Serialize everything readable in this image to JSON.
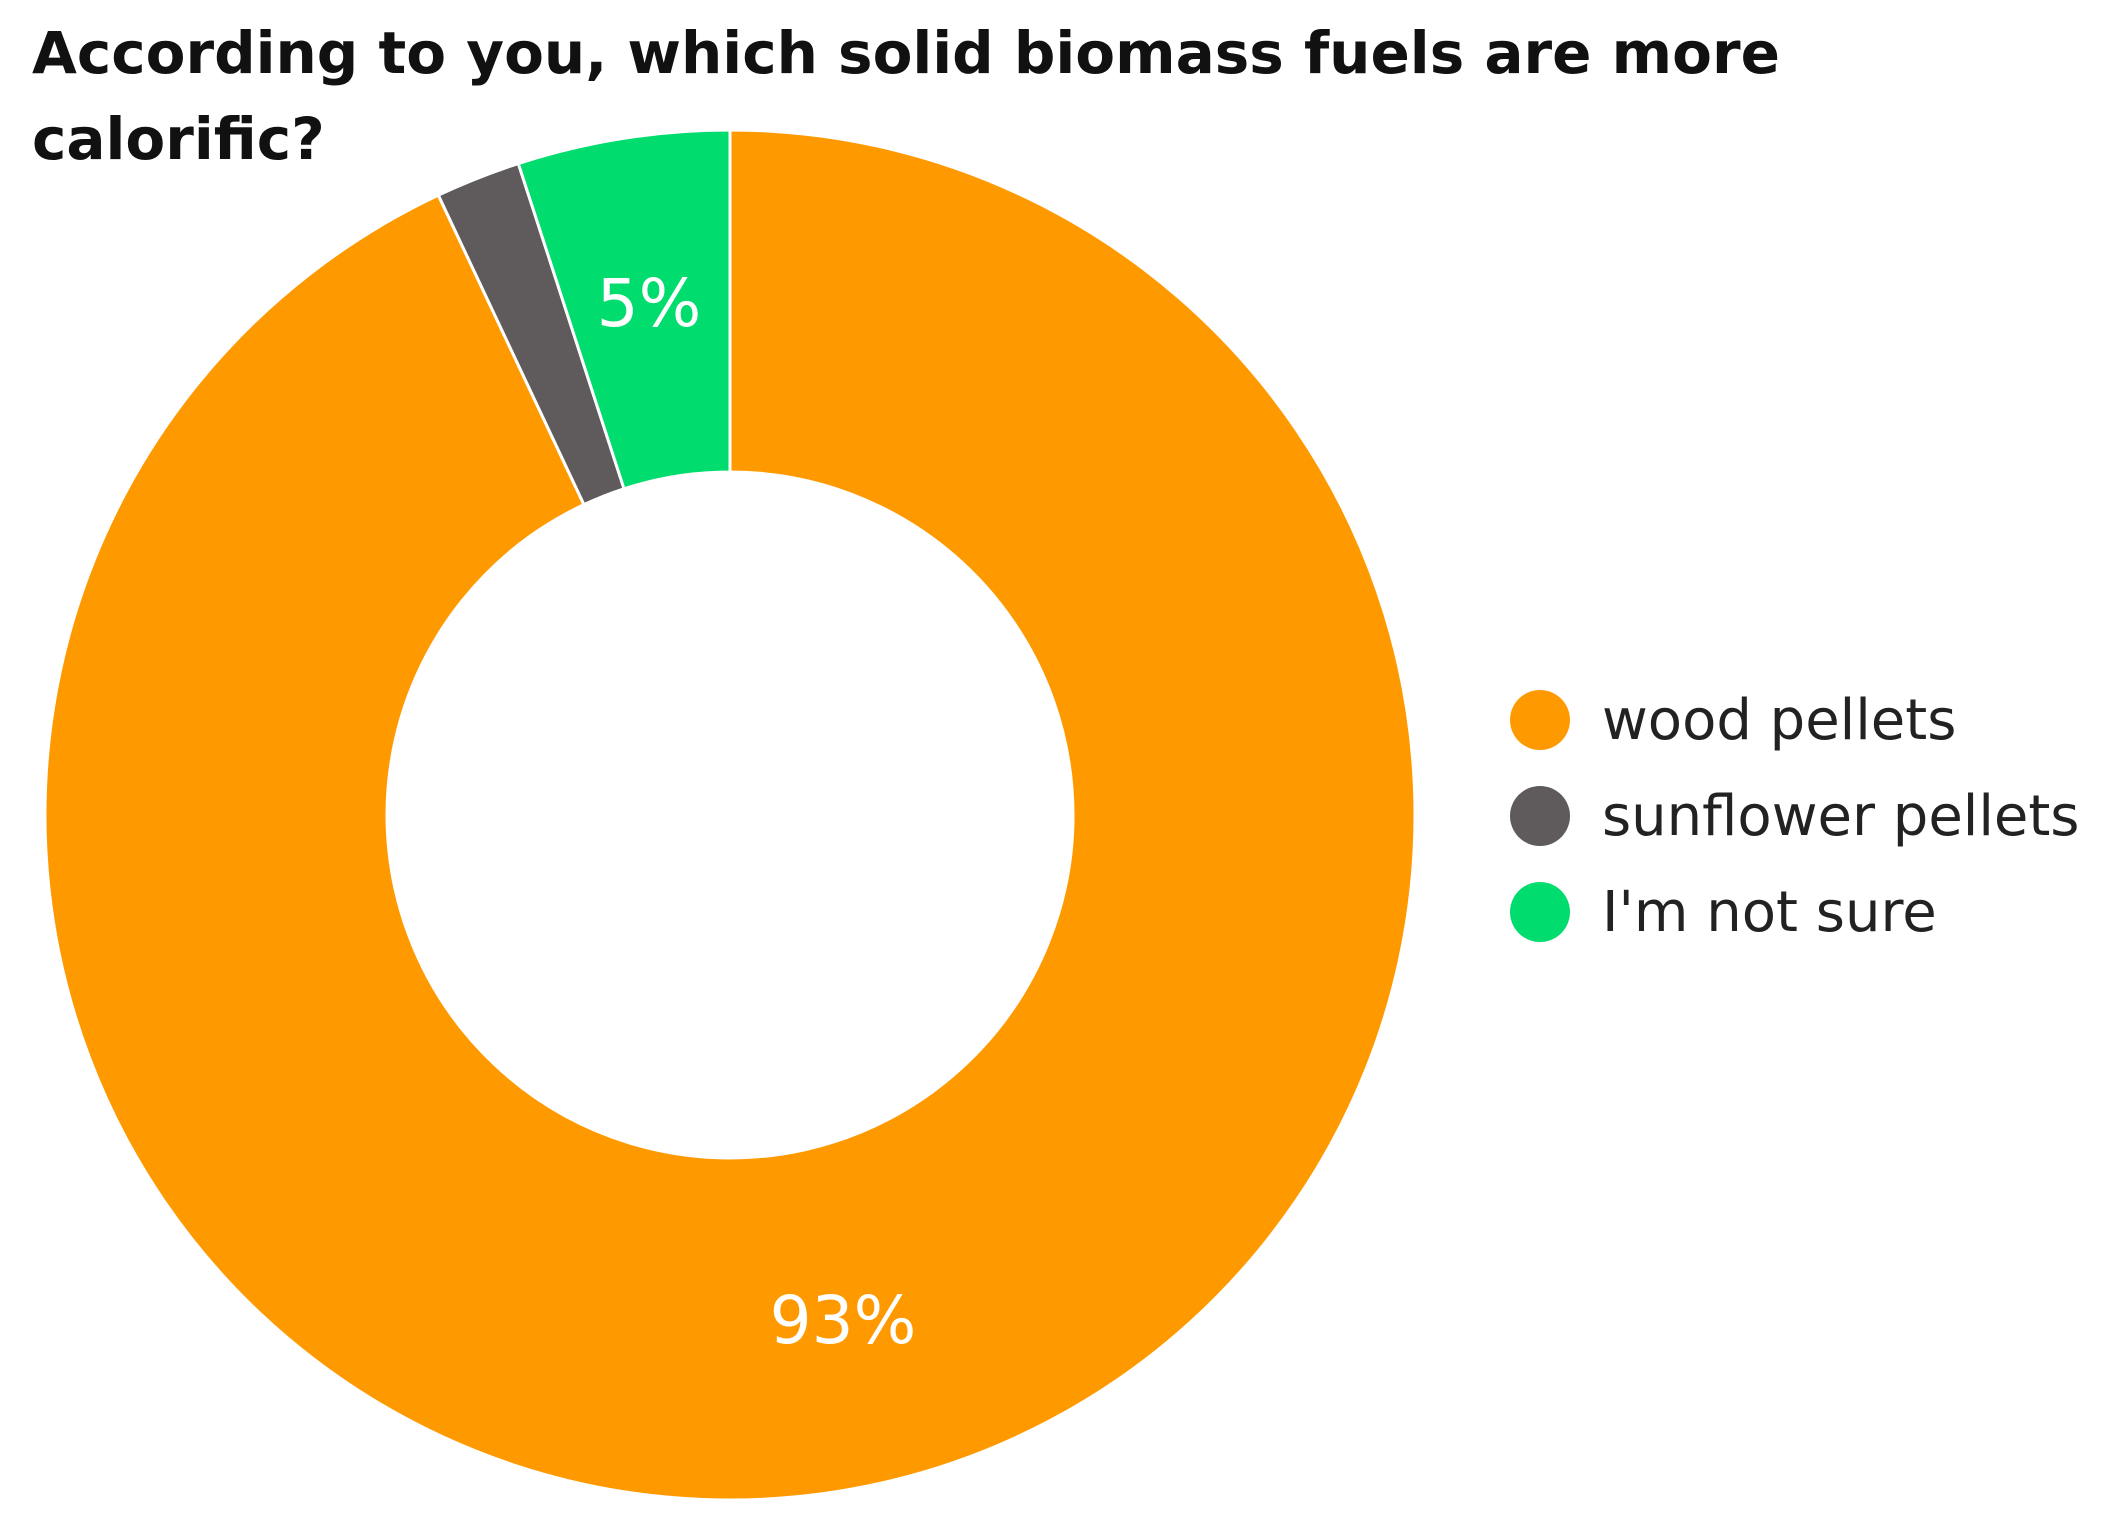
{
  "chart_data": {
    "type": "pie",
    "title": "According to you, which solid biomass fuels are more calorific?",
    "donut": true,
    "legend_position": "right",
    "slices": [
      {
        "label": "wood pellets",
        "value": 93,
        "data_label": "93%",
        "color": "#FF9900"
      },
      {
        "label": "sunflower pellets",
        "value": 2,
        "data_label": "",
        "color": "#5F5A5C"
      },
      {
        "label": "I'm not sure",
        "value": 5,
        "data_label": "5%",
        "color": "#00DC6E"
      }
    ]
  },
  "colors": {
    "slice_border": "#FFFFFF",
    "data_label_text": "#FFFFFF"
  }
}
